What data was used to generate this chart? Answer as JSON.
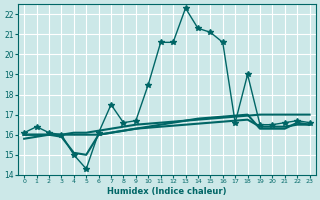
{
  "xlabel": "Humidex (Indice chaleur)",
  "ylabel": "",
  "background_color": "#cce8e8",
  "grid_color": "#ffffff",
  "line_color": "#006666",
  "xlim": [
    -0.5,
    23.5
  ],
  "ylim": [
    14,
    22.5
  ],
  "yticks": [
    14,
    15,
    16,
    17,
    18,
    19,
    20,
    21,
    22
  ],
  "xticks": [
    0,
    1,
    2,
    3,
    4,
    5,
    6,
    7,
    8,
    9,
    10,
    11,
    12,
    13,
    14,
    15,
    16,
    17,
    18,
    19,
    20,
    21,
    22,
    23
  ],
  "series": [
    {
      "x": [
        0,
        1,
        2,
        3,
        4,
        5,
        6,
        7,
        8,
        9,
        10,
        11,
        12,
        13,
        14,
        15,
        16,
        17,
        18,
        19,
        20,
        21,
        22,
        23
      ],
      "y": [
        16.1,
        16.4,
        16.1,
        16.0,
        15.0,
        14.3,
        16.1,
        17.5,
        16.6,
        16.7,
        18.5,
        20.6,
        20.6,
        22.3,
        21.3,
        21.1,
        20.6,
        16.6,
        19.0,
        16.5,
        16.5,
        16.6,
        16.7,
        16.6
      ],
      "marker": "*",
      "linewidth": 1.0,
      "markersize": 4
    },
    {
      "x": [
        0,
        1,
        2,
        3,
        4,
        5,
        6,
        7,
        8,
        9,
        10,
        11,
        12,
        13,
        14,
        15,
        16,
        17,
        18,
        19,
        20,
        21,
        22,
        23
      ],
      "y": [
        16.0,
        16.0,
        16.0,
        15.9,
        15.1,
        15.0,
        16.0,
        16.1,
        16.2,
        16.3,
        16.4,
        16.5,
        16.6,
        16.7,
        16.8,
        16.85,
        16.9,
        16.95,
        17.0,
        16.3,
        16.3,
        16.3,
        16.6,
        16.5
      ],
      "marker": null,
      "linewidth": 1.5,
      "markersize": 0
    },
    {
      "x": [
        0,
        1,
        2,
        3,
        4,
        5,
        6,
        7,
        8,
        9,
        10,
        11,
        12,
        13,
        14,
        15,
        16,
        17,
        18,
        19,
        20,
        21,
        22,
        23
      ],
      "y": [
        15.8,
        15.9,
        16.0,
        16.0,
        16.1,
        16.1,
        16.2,
        16.3,
        16.4,
        16.5,
        16.55,
        16.6,
        16.65,
        16.7,
        16.75,
        16.8,
        16.85,
        16.9,
        16.95,
        17.0,
        17.0,
        17.0,
        17.0,
        17.0
      ],
      "marker": null,
      "linewidth": 1.5,
      "markersize": 0
    },
    {
      "x": [
        0,
        1,
        2,
        3,
        4,
        5,
        6,
        7,
        8,
        9,
        10,
        11,
        12,
        13,
        14,
        15,
        16,
        17,
        18,
        19,
        20,
        21,
        22,
        23
      ],
      "y": [
        16.0,
        16.0,
        16.0,
        16.0,
        16.0,
        16.0,
        16.0,
        16.1,
        16.2,
        16.3,
        16.35,
        16.4,
        16.45,
        16.5,
        16.55,
        16.6,
        16.65,
        16.7,
        16.75,
        16.4,
        16.4,
        16.4,
        16.5,
        16.5
      ],
      "marker": null,
      "linewidth": 1.5,
      "markersize": 0
    }
  ]
}
